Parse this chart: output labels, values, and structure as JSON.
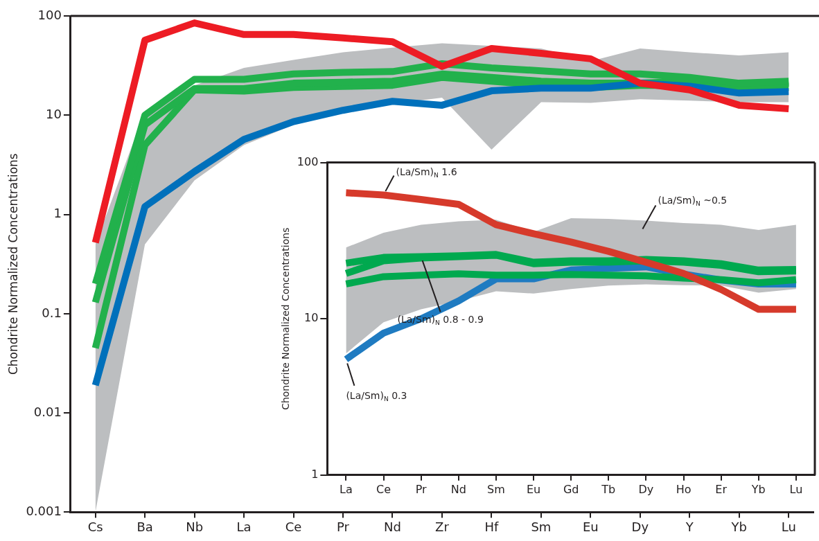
{
  "chart_data": [
    {
      "type": "line",
      "ylabel": "Chondrite Normalized Concentrations",
      "log": "y",
      "grid": false,
      "legend": false,
      "marker": "none",
      "line_style": "solid",
      "categories": [
        "Cs",
        "Ba",
        "Nb",
        "La",
        "Ce",
        "Pr",
        "Nd",
        "Zr",
        "Hf",
        "Sm",
        "Eu",
        "Dy",
        "Y",
        "Yb",
        "Lu"
      ],
      "ylim": [
        0.001,
        100
      ],
      "yticks": [
        0.001,
        0.01,
        0.1,
        1,
        10,
        100
      ],
      "series": [
        {
          "color": "#bcbec0",
          "values": [
            null,
            null,
            null,
            null,
            null,
            null,
            null,
            null,
            null,
            null,
            null,
            null,
            null,
            null,
            null
          ],
          "lower": [
            0.001,
            0.5,
            2.2,
            5,
            8,
            11,
            13,
            15,
            4.5,
            13.5,
            13.3,
            14.5,
            14,
            13.5,
            13.5
          ],
          "upper": [
            0.5,
            11,
            20,
            30,
            36,
            43,
            48,
            53,
            50,
            47,
            35,
            47,
            43,
            40,
            43
          ]
        },
        {
          "color": "#ed1c24",
          "values": [
            0.52,
            57,
            85,
            65,
            65,
            60,
            55,
            31,
            47,
            42,
            37,
            21,
            18,
            12.6,
            11.6
          ]
        },
        {
          "color": "#0070bb",
          "values": [
            0.019,
            1.2,
            2.7,
            5.7,
            8.6,
            11.2,
            13.8,
            12.6,
            17.6,
            18.7,
            18.7,
            21,
            19.6,
            16.7,
            17.3
          ]
        },
        {
          "color": "#22b14c",
          "values": [
            0.2,
            10,
            23,
            23,
            26,
            27,
            27.5,
            33,
            30,
            28,
            26,
            26,
            24,
            21,
            22
          ]
        },
        {
          "color": "#22b14c",
          "values": [
            0.13,
            8,
            18.5,
            18.5,
            21,
            21.5,
            22,
            26,
            24,
            22,
            21,
            21,
            22,
            19,
            21
          ]
        },
        {
          "color": "#22b14c",
          "values": [
            0.045,
            5,
            18,
            17.5,
            19,
            19.5,
            20,
            24,
            22,
            20,
            19,
            20,
            20,
            18,
            19
          ]
        }
      ]
    },
    {
      "type": "line",
      "ylabel": "Chondrite Normalized Concentrations",
      "log": "y",
      "grid": false,
      "legend": false,
      "marker": "none",
      "line_style": "solid",
      "categories": [
        "La",
        "Ce",
        "Pr",
        "Nd",
        "Sm",
        "Eu",
        "Gd",
        "Tb",
        "Dy",
        "Ho",
        "Er",
        "Yb",
        "Lu"
      ],
      "ylim": [
        1,
        100
      ],
      "yticks": [
        1,
        10,
        100
      ],
      "series": [
        {
          "color": "#bcbec0",
          "values": [
            null,
            null,
            null,
            null,
            null,
            null,
            null,
            null,
            null,
            null,
            null,
            null,
            null
          ],
          "lower": [
            6,
            9.5,
            11.5,
            13,
            15,
            14.5,
            15.5,
            16.3,
            16.6,
            16.4,
            16.3,
            14.7,
            15.5
          ],
          "upper": [
            28.6,
            35.5,
            40,
            42,
            43,
            36,
            44,
            43.6,
            42.5,
            41,
            40,
            37,
            40
          ]
        },
        {
          "color": "#d63a2b",
          "values": [
            64,
            62,
            58,
            54,
            40,
            35,
            31,
            27,
            23,
            19.5,
            15.4,
            11.5,
            11.5
          ]
        },
        {
          "color": "#00a94f",
          "values": [
            22.7,
            24.7,
            25,
            25.3,
            25.8,
            23,
            23.5,
            23.5,
            24,
            23.5,
            22.5,
            20.5,
            20.7
          ]
        },
        {
          "color": "#00a94f",
          "values": [
            19.5,
            23.5,
            24.5,
            25,
            25.5,
            22.5,
            23,
            23,
            23.5,
            23,
            22,
            20,
            20.2
          ]
        },
        {
          "color": "#00a94f",
          "values": [
            16.7,
            18.6,
            19,
            19.4,
            19,
            19,
            19.2,
            19,
            18.8,
            18.2,
            17.8,
            17,
            17.8
          ]
        },
        {
          "color": "#1f7bc1",
          "values": [
            5.5,
            8.1,
            10,
            13,
            18,
            18,
            20.5,
            21,
            21.5,
            19.3,
            17.7,
            16.7,
            16.7
          ]
        }
      ],
      "annotations": [
        {
          "text": "(La/Sm)$_{N}$ 1.6",
          "x": "Ce",
          "y": 62
        },
        "(La/Sm)$_{N}$ ~0.5",
        {
          "text": "(La/Sm)$_{N}$ 0.8 - 0.9",
          "x": "Pr",
          "y": 25
        },
        {
          "text": "(La/Sm)$_{N}$ 0.3",
          "x": "La",
          "y": 5.5
        }
      ]
    }
  ]
}
